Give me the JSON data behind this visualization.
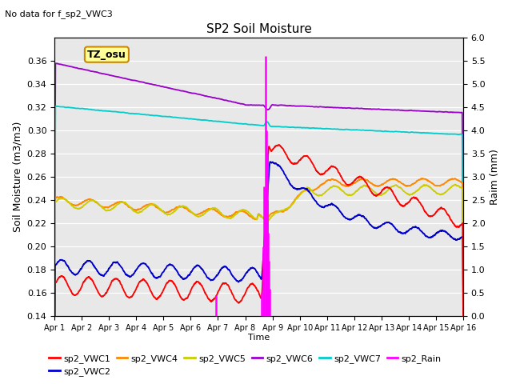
{
  "title": "SP2 Soil Moisture",
  "subtitle": "No data for f_sp2_VWC3",
  "xlabel": "Time",
  "ylabel_left": "Soil Moisture (m3/m3)",
  "ylabel_right": "Raim (mm)",
  "ylim_left": [
    0.14,
    0.38
  ],
  "ylim_right": [
    0.0,
    6.0
  ],
  "yticks_left": [
    0.14,
    0.16,
    0.18,
    0.2,
    0.22,
    0.24,
    0.26,
    0.28,
    0.3,
    0.32,
    0.34,
    0.36
  ],
  "yticks_right": [
    0.0,
    0.5,
    1.0,
    1.5,
    2.0,
    2.5,
    3.0,
    3.5,
    4.0,
    4.5,
    5.0,
    5.5,
    6.0
  ],
  "xtick_labels": [
    "Apr 1",
    "Apr 2",
    "Apr 3",
    "Apr 4",
    "Apr 5",
    "Apr 6",
    "Apr 7",
    "Apr 8",
    "Apr 9",
    "Apr 10",
    "Apr 11",
    "Apr 12",
    "Apr 13",
    "Apr 14",
    "Apr 15",
    "Apr 16"
  ],
  "colors": {
    "sp2_VWC1": "#ff0000",
    "sp2_VWC2": "#0000cc",
    "sp2_VWC4": "#ff8800",
    "sp2_VWC5": "#cccc00",
    "sp2_VWC6": "#9900cc",
    "sp2_VWC7": "#00cccc",
    "sp2_Rain": "#ff00ff"
  },
  "bg_color": "#e8e8e8",
  "tz_osu_box": {
    "text": "TZ_osu",
    "bg": "#ffff99",
    "border": "#cc8800"
  },
  "legend_labels": [
    "sp2_VWC1",
    "sp2_VWC2",
    "sp2_VWC4",
    "sp2_VWC5",
    "sp2_VWC6",
    "sp2_VWC7",
    "sp2_Rain"
  ]
}
